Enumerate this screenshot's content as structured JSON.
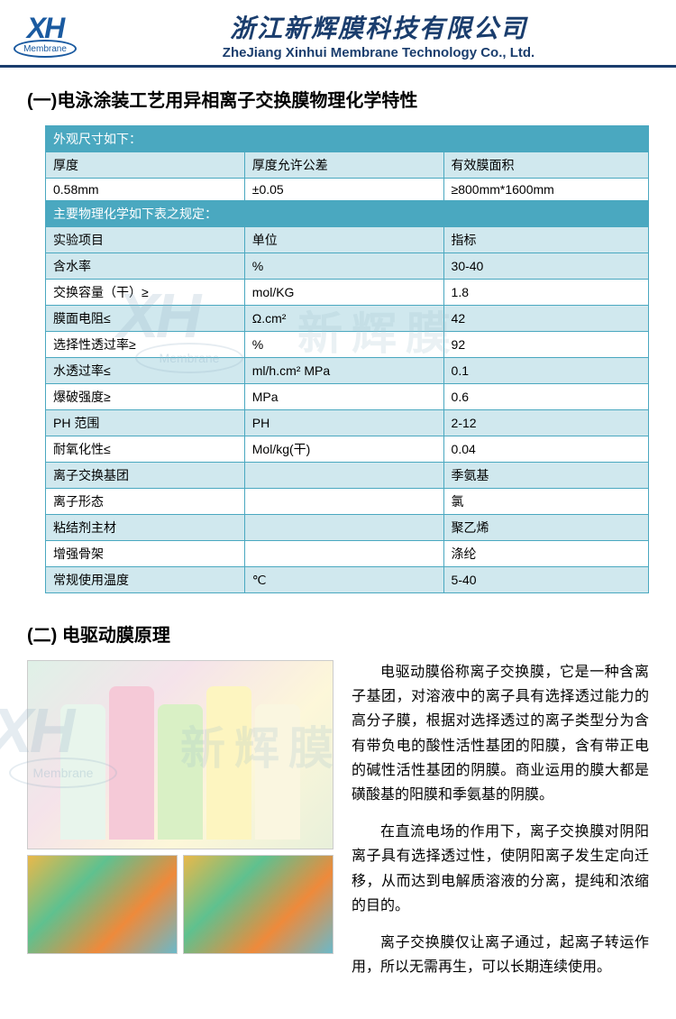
{
  "header": {
    "logo_text": "XH",
    "logo_sub": "Membrane",
    "company_cn": "浙江新辉膜科技有限公司",
    "company_en": "ZheJiang Xinhui Membrane Technology Co., Ltd."
  },
  "section1": {
    "heading": "(一)电泳涂装工艺用异相离子交换膜物理化学特性",
    "table": {
      "hdr1": "外观尺寸如下：",
      "dim_row": {
        "a": "厚度",
        "b": "厚度允许公差",
        "c": "有效膜面积"
      },
      "dim_val": {
        "a": "0.58mm",
        "b": "±0.05",
        "c": "≥800mm*1600mm"
      },
      "hdr2": "主要物理化学如下表之规定：",
      "prop_hdr": {
        "a": "实验项目",
        "b": "单位",
        "c": "指标"
      },
      "rows": [
        {
          "a": "含水率",
          "b": "%",
          "c": "30-40"
        },
        {
          "a": "交换容量（干）≥",
          "b": "mol/KG",
          "c": "1.8"
        },
        {
          "a": "膜面电阻≤",
          "b": "Ω.cm²",
          "c": "42"
        },
        {
          "a": "选择性透过率≥",
          "b": "%",
          "c": "92"
        },
        {
          "a": "水透过率≤",
          "b": "ml/h.cm² MPa",
          "c": "0.1"
        },
        {
          "a": "爆破强度≥",
          "b": "MPa",
          "c": "0.6"
        },
        {
          "a": "PH 范围",
          "b": "PH",
          "c": "2-12"
        },
        {
          "a": "耐氧化性≤",
          "b": "Mol/kg(干)",
          "c": "0.04"
        },
        {
          "a": "离子交换基团",
          "b": "",
          "c": "季氨基"
        },
        {
          "a": "离子形态",
          "b": "",
          "c": "氯"
        },
        {
          "a": "粘结剂主材",
          "b": "",
          "c": "聚乙烯"
        },
        {
          "a": "增强骨架",
          "b": "",
          "c": "涤纶"
        },
        {
          "a": "常规使用温度",
          "b": "℃",
          "c": "5-40"
        }
      ]
    }
  },
  "section2": {
    "heading": "(二) 电驱动膜原理",
    "paragraphs": [
      "电驱动膜俗称离子交换膜，它是一种含离子基团，对溶液中的离子具有选择透过能力的高分子膜，根据对选择透过的离子类型分为含有带负电的酸性活性基团的阳膜，含有带正电的碱性活性基团的阴膜。商业运用的膜大都是磺酸基的阳膜和季氨基的阴膜。",
      "在直流电场的作用下，离子交换膜对阴阳离子具有选择透过性，使阴阳离子发生定向迁移，从而达到电解质溶液的分离，提纯和浓缩的目的。",
      "离子交换膜仅让离子通过，起离子转运作用，所以无需再生，可以长期连续使用。"
    ]
  },
  "watermark": {
    "xh": "XH",
    "sub": "Membrane",
    "cn": "新辉膜"
  },
  "colors": {
    "table_border": "#4aa8c0",
    "table_header_bg": "#4aa8c0",
    "table_alt_bg": "#d0e8ee",
    "header_rule": "#1a3d6d",
    "logo_color": "#1a5aa0"
  }
}
